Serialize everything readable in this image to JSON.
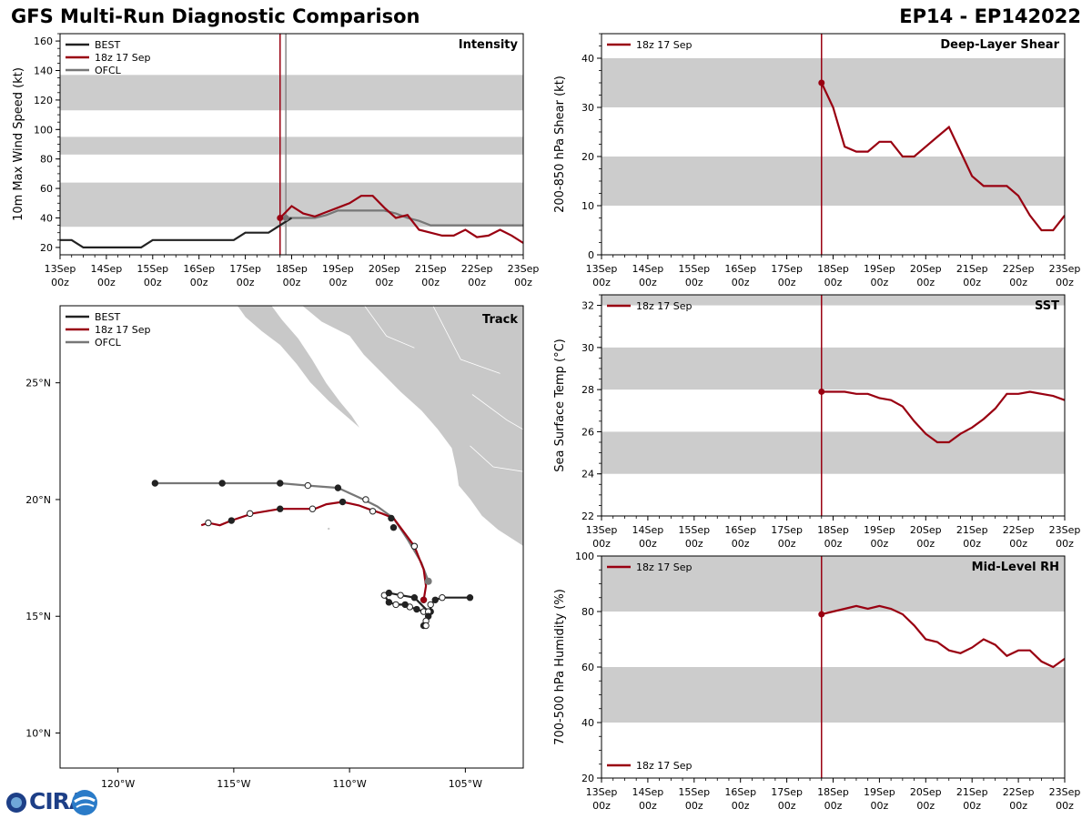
{
  "header": {
    "title": "GFS Multi-Run Diagnostic Comparison",
    "storm_id": "EP14 - EP142022"
  },
  "logo": {
    "text": "CIRA"
  },
  "colors": {
    "best": "#222222",
    "run": "#990011",
    "ofcl": "#777777",
    "band": "#cccccc",
    "land": "#c8c8c8",
    "vline_ofcl": "#888888"
  },
  "time_axis": {
    "tick_days": [
      "13Sep",
      "14Sep",
      "15Sep",
      "16Sep",
      "17Sep",
      "18Sep",
      "19Sep",
      "20Sep",
      "21Sep",
      "22Sep",
      "23Sep"
    ],
    "tick_hour": "00z",
    "init_hour": 114,
    "ofcl_hour": 117
  },
  "chart_data": [
    {
      "id": "intensity",
      "type": "line",
      "title": "Intensity",
      "ylabel": "10m Max Wind Speed (kt)",
      "ylim": [
        15,
        165
      ],
      "yticks": [
        20,
        40,
        60,
        80,
        100,
        120,
        140,
        160
      ],
      "bands": [
        [
          34,
          64
        ],
        [
          83,
          95
        ],
        [
          113,
          137
        ]
      ],
      "legend": [
        "BEST",
        "18z 17 Sep",
        "OFCL"
      ],
      "series": [
        {
          "name": "BEST",
          "hours": [
            0,
            6,
            12,
            18,
            24,
            30,
            36,
            42,
            48,
            54,
            60,
            66,
            72,
            78,
            84,
            90,
            96,
            102,
            108,
            114,
            120
          ],
          "values": [
            25,
            25,
            20,
            20,
            20,
            20,
            20,
            20,
            25,
            25,
            25,
            25,
            25,
            25,
            25,
            25,
            30,
            30,
            30,
            35,
            40
          ]
        },
        {
          "name": "18z 17 Sep",
          "hours": [
            114,
            120,
            126,
            132,
            138,
            144,
            150,
            156,
            162,
            168,
            174,
            180,
            186,
            192,
            198,
            204,
            210,
            216,
            222,
            228,
            234,
            240
          ],
          "values": [
            40,
            48,
            43,
            41,
            44,
            47,
            50,
            55,
            55,
            47,
            40,
            42,
            32,
            30,
            28,
            28,
            32,
            27,
            28,
            32,
            28,
            23
          ]
        },
        {
          "name": "OFCL",
          "hours": [
            117,
            120,
            126,
            132,
            138,
            144,
            150,
            156,
            162,
            168,
            174,
            180,
            186,
            192,
            240
          ],
          "values": [
            40,
            40,
            40,
            40,
            42,
            45,
            45,
            45,
            45,
            45,
            43,
            40,
            38,
            35,
            35
          ]
        }
      ]
    },
    {
      "id": "shear",
      "type": "line",
      "title": "Deep-Layer Shear",
      "ylabel": "200-850 hPa Shear (kt)",
      "ylim": [
        0,
        45
      ],
      "yticks": [
        0,
        10,
        20,
        30,
        40
      ],
      "bands": [
        [
          10,
          20
        ],
        [
          30,
          40
        ]
      ],
      "legend": [
        "18z 17 Sep"
      ],
      "series": [
        {
          "name": "18z 17 Sep",
          "hours": [
            114,
            120,
            126,
            132,
            138,
            144,
            150,
            156,
            162,
            168,
            174,
            180,
            186,
            192,
            198,
            204,
            210,
            216,
            222,
            228,
            234,
            240
          ],
          "values": [
            35,
            30,
            22,
            21,
            21,
            23,
            23,
            20,
            20,
            22,
            24,
            26,
            21,
            16,
            14,
            14,
            14,
            12,
            8,
            5,
            5,
            8
          ]
        }
      ]
    },
    {
      "id": "sst",
      "type": "line",
      "title": "SST",
      "ylabel": "Sea Surface Temp (°C)",
      "ylim": [
        22,
        32.5
      ],
      "yticks": [
        22,
        24,
        26,
        28,
        30,
        32
      ],
      "bands": [
        [
          24,
          26
        ],
        [
          28,
          30
        ],
        [
          32,
          33
        ]
      ],
      "legend": [
        "18z 17 Sep"
      ],
      "series": [
        {
          "name": "18z 17 Sep",
          "hours": [
            114,
            120,
            126,
            132,
            138,
            144,
            150,
            156,
            162,
            168,
            174,
            180,
            186,
            192,
            198,
            204,
            210,
            216,
            222,
            228,
            234,
            240
          ],
          "values": [
            27.9,
            27.9,
            27.9,
            27.8,
            27.8,
            27.6,
            27.5,
            27.2,
            26.5,
            25.9,
            25.5,
            25.5,
            25.9,
            26.2,
            26.6,
            27.1,
            27.8,
            27.8,
            27.9,
            27.8,
            27.7,
            27.5
          ]
        }
      ]
    },
    {
      "id": "rh",
      "type": "line",
      "title": "Mid-Level RH",
      "ylabel": "700-500 hPa Humidity (%)",
      "ylim": [
        20,
        100
      ],
      "yticks": [
        20,
        40,
        60,
        80,
        100
      ],
      "bands": [
        [
          40,
          60
        ],
        [
          80,
          100
        ]
      ],
      "legend": [
        "18z 17 Sep"
      ],
      "series": [
        {
          "name": "18z 17 Sep",
          "hours": [
            114,
            120,
            126,
            132,
            138,
            144,
            150,
            156,
            162,
            168,
            174,
            180,
            186,
            192,
            198,
            204,
            210,
            216,
            222,
            228,
            234,
            240
          ],
          "values": [
            79,
            80,
            81,
            82,
            81,
            82,
            81,
            79,
            75,
            70,
            69,
            66,
            65,
            67,
            70,
            68,
            64,
            66,
            66,
            62,
            60,
            63
          ]
        }
      ]
    },
    {
      "id": "track",
      "type": "scatter",
      "title": "Track",
      "xlim": [
        -122.5,
        -102.5
      ],
      "ylim": [
        8.5,
        28.3
      ],
      "xticks": [
        -120,
        -115,
        -110,
        -105
      ],
      "xtick_labels": [
        "120°W",
        "115°W",
        "110°W",
        "105°W"
      ],
      "yticks": [
        10,
        15,
        20,
        25
      ],
      "ytick_labels": [
        "10°N",
        "15°N",
        "20°N",
        "25°N"
      ],
      "legend": [
        "BEST",
        "18z 17 Sep",
        "OFCL"
      ],
      "best_track": {
        "lons": [
          -104.8,
          -106.0,
          -106.3,
          -106.5,
          -106.5,
          -106.8,
          -107.1,
          -107.4,
          -107.6,
          -108.0,
          -108.3,
          -108.5,
          -108.3,
          -107.8,
          -107.2,
          -106.6,
          -106.6,
          -106.7,
          -106.8,
          -106.7
        ],
        "lats": [
          15.8,
          15.8,
          15.7,
          15.5,
          15.2,
          15.2,
          15.3,
          15.4,
          15.5,
          15.5,
          15.6,
          15.9,
          16.0,
          15.9,
          15.8,
          15.2,
          15.0,
          14.8,
          14.6,
          14.6
        ],
        "filled": [
          true,
          false,
          true,
          false,
          true,
          false,
          true,
          false,
          true,
          false,
          true,
          false,
          true,
          false,
          true,
          false,
          true,
          false,
          true,
          false
        ]
      },
      "run_track": {
        "lons": [
          -106.8,
          -106.7,
          -106.8,
          -107.0,
          -107.2,
          -107.5,
          -107.8,
          -108.1,
          -108.6,
          -109.2,
          -109.6,
          -110.3,
          -111.0,
          -111.5,
          -113.0,
          -114.2,
          -115.1,
          -115.6,
          -116.1,
          -116.4
        ],
        "lats": [
          15.7,
          16.3,
          17.0,
          17.5,
          18.0,
          18.4,
          18.8,
          19.2,
          19.4,
          19.6,
          19.75,
          19.9,
          19.8,
          19.6,
          19.6,
          19.4,
          19.1,
          18.9,
          19.0,
          18.9
        ],
        "dots": [
          [
            -106.8,
            15.7,
            1
          ],
          [
            -107.2,
            18.0,
            0
          ],
          [
            -108.1,
            18.8,
            1
          ],
          [
            -109.0,
            19.5,
            0
          ],
          [
            -110.3,
            19.9,
            1
          ],
          [
            -111.6,
            19.6,
            0
          ],
          [
            -113.0,
            19.6,
            1
          ],
          [
            -114.3,
            19.4,
            0
          ],
          [
            -115.1,
            19.1,
            1
          ],
          [
            -116.1,
            19.0,
            0
          ]
        ]
      },
      "ofcl_track": {
        "lons": [
          -106.6,
          -106.9,
          -107.5,
          -108.1,
          -108.8,
          -109.4,
          -110.5,
          -111.8,
          -113.0,
          -115.5,
          -118.4
        ],
        "lats": [
          16.5,
          17.3,
          18.3,
          19.2,
          19.7,
          20.0,
          20.5,
          20.6,
          20.7,
          20.7,
          20.7
        ],
        "dots": [
          [
            -106.6,
            16.5,
            2
          ],
          [
            -107.2,
            18.0,
            0
          ],
          [
            -108.2,
            19.2,
            1
          ],
          [
            -109.3,
            20.0,
            0
          ],
          [
            -110.5,
            20.5,
            1
          ],
          [
            -111.8,
            20.6,
            0
          ],
          [
            -113.0,
            20.7,
            1
          ],
          [
            -115.5,
            20.7,
            1
          ],
          [
            -118.4,
            20.7,
            1
          ]
        ]
      }
    }
  ]
}
